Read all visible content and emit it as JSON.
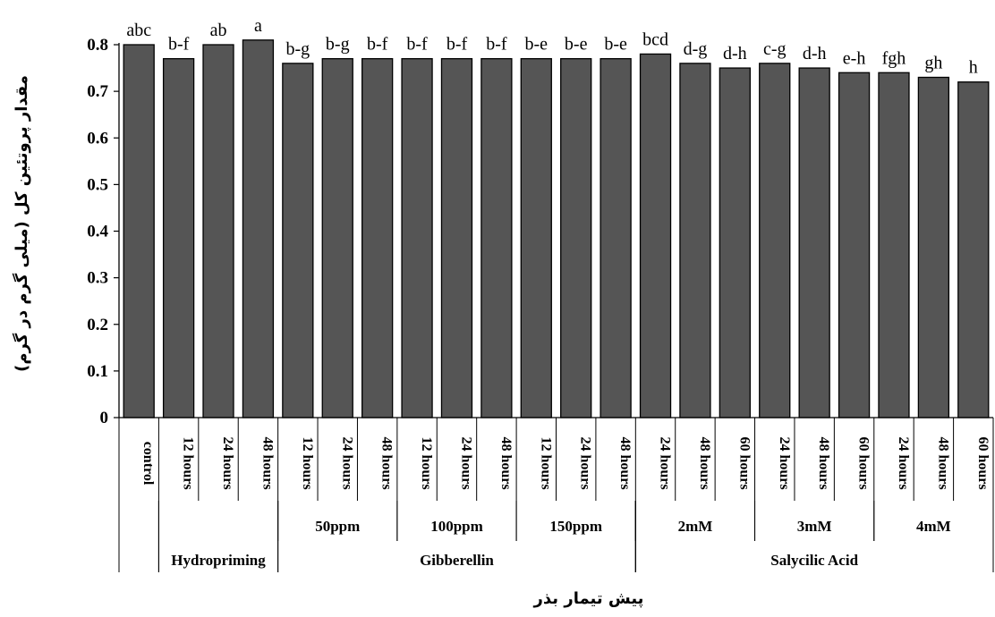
{
  "chart_data": {
    "type": "bar",
    "ylabel": "مقدار پروتئین کل (میلی گرم در گرم)",
    "xlabel": "پیش تیمار بذر",
    "ylim": [
      0,
      0.8
    ],
    "yticks": [
      "0",
      "0.1",
      "0.2",
      "0.3",
      "0.4",
      "0.5",
      "0.6",
      "0.7",
      "0.8"
    ],
    "grid": false,
    "bar_color": "#555555",
    "categories": [
      "control",
      "12 hours",
      "24 hours",
      "48 hours",
      "12 hours",
      "24 hours",
      "48 hours",
      "12 hours",
      "24 hours",
      "48 hours",
      "12 hours",
      "24 hours",
      "48 hours",
      "24 hours",
      "48 hours",
      "60 hours",
      "24 hours",
      "48 hours",
      "60 hours",
      "24 hours",
      "48 hours",
      "60 hours"
    ],
    "values": [
      0.8,
      0.77,
      0.8,
      0.81,
      0.76,
      0.77,
      0.77,
      0.77,
      0.77,
      0.77,
      0.77,
      0.77,
      0.77,
      0.78,
      0.76,
      0.75,
      0.76,
      0.75,
      0.74,
      0.74,
      0.73,
      0.72
    ],
    "significance_letters": [
      "abc",
      "b-f",
      "ab",
      "a",
      "b-g",
      "b-g",
      "b-f",
      "b-f",
      "b-f",
      "b-f",
      "b-e",
      "b-e",
      "b-e",
      "bcd",
      "d-g",
      "d-h",
      "c-g",
      "d-h",
      "e-h",
      "fgh",
      "gh",
      "h"
    ],
    "subgroups": [
      {
        "label": "50ppm",
        "start": 4,
        "end": 6
      },
      {
        "label": "100ppm",
        "start": 7,
        "end": 9
      },
      {
        "label": "150ppm",
        "start": 10,
        "end": 12
      },
      {
        "label": "2mM",
        "start": 13,
        "end": 15
      },
      {
        "label": "3mM",
        "start": 16,
        "end": 18
      },
      {
        "label": "4mM",
        "start": 19,
        "end": 21
      }
    ],
    "groups": [
      {
        "label": "Hydropriming",
        "start": 1,
        "end": 3
      },
      {
        "label": "Gibberellin",
        "start": 4,
        "end": 12
      },
      {
        "label": "Salycilic Acid",
        "start": 13,
        "end": 21
      }
    ]
  }
}
